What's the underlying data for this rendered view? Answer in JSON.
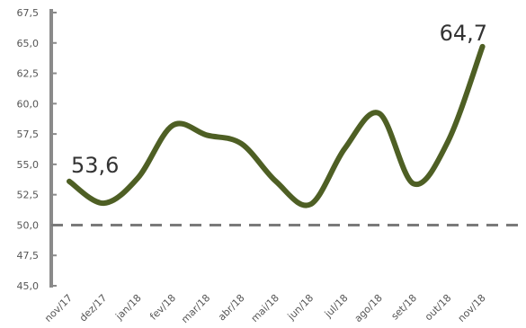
{
  "chart_data": {
    "type": "line",
    "title": "",
    "xlabel": "",
    "ylabel": "",
    "categories": [
      "nov/17",
      "dez/17",
      "jan/18",
      "fev/18",
      "mar/18",
      "abr/18",
      "mai/18",
      "jun/18",
      "jul/18",
      "ago/18",
      "set/18",
      "out/18",
      "nov/18"
    ],
    "series": [
      {
        "values": [
          53.6,
          51.8,
          53.9,
          58.2,
          57.4,
          56.7,
          53.6,
          51.7,
          56.3,
          59.2,
          53.4,
          56.9,
          64.7
        ]
      }
    ],
    "ylim": [
      45.0,
      67.5
    ],
    "yticks": [
      "45,0",
      "47,5",
      "50,0",
      "52,5",
      "55,0",
      "57,5",
      "60,0",
      "62,5",
      "65,0",
      "67,5"
    ],
    "ytick_values": [
      45.0,
      47.5,
      50.0,
      52.5,
      55.0,
      57.5,
      60.0,
      62.5,
      65.0,
      67.5
    ],
    "reference_line": 50.0,
    "data_labels": [
      {
        "index": 0,
        "text": "53,6"
      },
      {
        "index": 12,
        "text": "64,7"
      }
    ],
    "grid": false,
    "legend": "none",
    "colors": {
      "line": "#4e5f24",
      "reference_line": "#7a7a7a",
      "axis": "#8a8a8a"
    }
  }
}
